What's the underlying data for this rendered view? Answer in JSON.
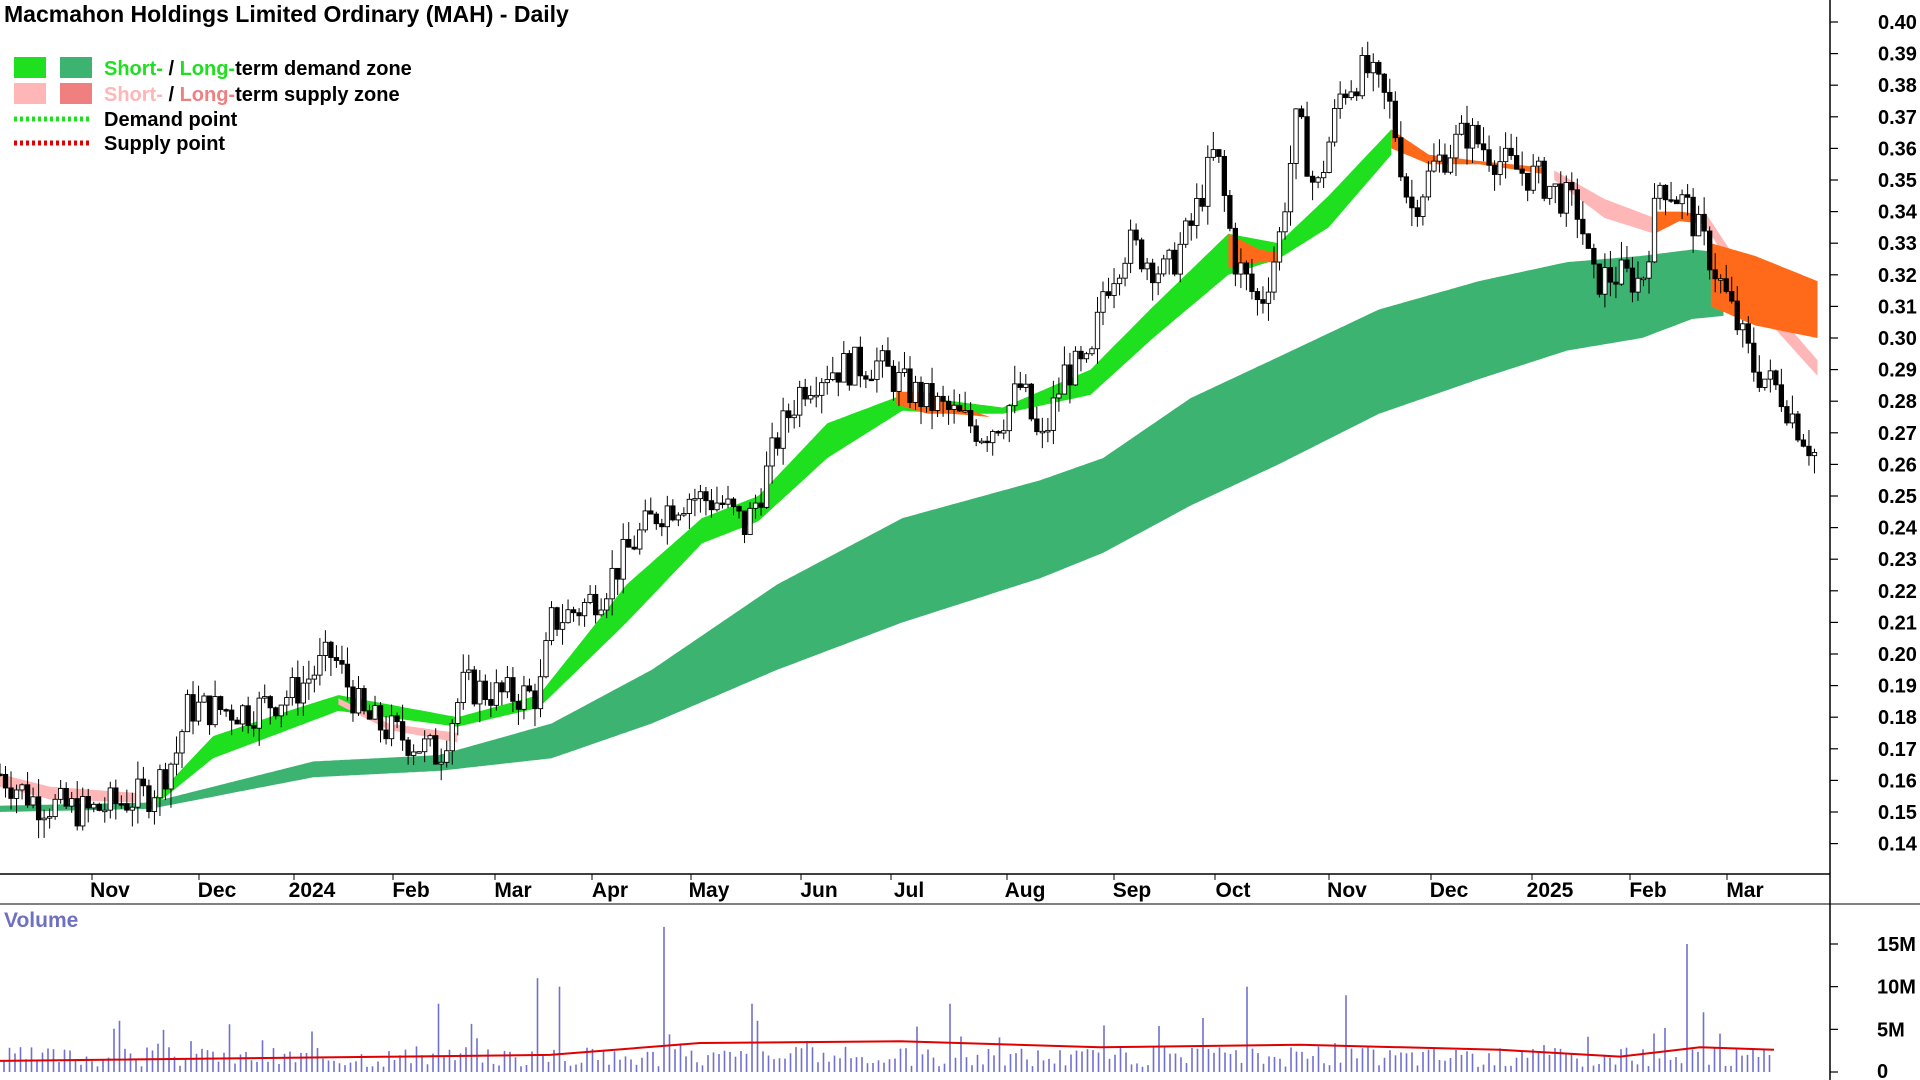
{
  "chart_data": {
    "type": "candlestick",
    "title": "Macmahon Holdings Limited Ordinary (MAH) - Daily",
    "legend": {
      "demand_short": "Short-",
      "demand_slash": " / ",
      "demand_long": "Long-",
      "demand_rest": "term demand zone",
      "supply_short": "Short-",
      "supply_slash": " / ",
      "supply_long": "Long-",
      "supply_rest": "term supply zone",
      "demand_point": "Demand point",
      "supply_point": "Supply point"
    },
    "colors": {
      "short_demand": "#1ee01e",
      "long_demand": "#3cb371",
      "short_supply": "#ffb6b6",
      "long_supply": "#f08080",
      "orange_cross": "#ff6a1a",
      "demand_point": "#1ee01e",
      "supply_point": "#e00000",
      "volume_bar": "#7070d0",
      "volume_avg": "#e00000",
      "label_green": "#1ee01e",
      "label_pink": "#ffb6b6",
      "label_salmon": "#f08080"
    },
    "price_axis": {
      "min": 0.13,
      "max": 0.405,
      "ticks": [
        "0.40",
        "0.39",
        "0.38",
        "0.37",
        "0.36",
        "0.35",
        "0.34",
        "0.33",
        "0.32",
        "0.31",
        "0.30",
        "0.29",
        "0.28",
        "0.27",
        "0.26",
        "0.25",
        "0.24",
        "0.23",
        "0.22",
        "0.21",
        "0.20",
        "0.19",
        "0.18",
        "0.17",
        "0.16",
        "0.15",
        "0.14"
      ]
    },
    "months": [
      "Nov",
      "Dec",
      "2024",
      "Feb",
      "Mar",
      "Apr",
      "May",
      "Jun",
      "Jul",
      "Aug",
      "Sep",
      "Oct",
      "Nov",
      "Dec",
      "2025",
      "Feb",
      "Mar"
    ],
    "volume": {
      "title": "Volume",
      "ticks": [
        "15M",
        "10M",
        "5M",
        "0"
      ],
      "max": 16000000
    },
    "price_path": [
      [
        0,
        0.162
      ],
      [
        30,
        0.153
      ],
      [
        70,
        0.15
      ],
      [
        120,
        0.156
      ],
      [
        140,
        0.168
      ],
      [
        150,
        0.183
      ],
      [
        200,
        0.182
      ],
      [
        235,
        0.188
      ],
      [
        265,
        0.2
      ],
      [
        290,
        0.18
      ],
      [
        330,
        0.172
      ],
      [
        350,
        0.168
      ],
      [
        370,
        0.19
      ],
      [
        400,
        0.187
      ],
      [
        430,
        0.187
      ],
      [
        440,
        0.21
      ],
      [
        465,
        0.215
      ],
      [
        480,
        0.22
      ],
      [
        505,
        0.235
      ],
      [
        525,
        0.245
      ],
      [
        550,
        0.25
      ],
      [
        575,
        0.248
      ],
      [
        595,
        0.24
      ],
      [
        610,
        0.255
      ],
      [
        620,
        0.268
      ],
      [
        640,
        0.285
      ],
      [
        660,
        0.29
      ],
      [
        700,
        0.292
      ],
      [
        720,
        0.285
      ],
      [
        740,
        0.28
      ],
      [
        760,
        0.276
      ],
      [
        785,
        0.27
      ],
      [
        800,
        0.275
      ],
      [
        815,
        0.285
      ],
      [
        830,
        0.265
      ],
      [
        850,
        0.29
      ],
      [
        870,
        0.29
      ],
      [
        880,
        0.315
      ],
      [
        900,
        0.33
      ],
      [
        930,
        0.32
      ],
      [
        950,
        0.335
      ],
      [
        970,
        0.36
      ],
      [
        985,
        0.325
      ],
      [
        1005,
        0.31
      ],
      [
        1020,
        0.33
      ],
      [
        1035,
        0.37
      ],
      [
        1050,
        0.345
      ],
      [
        1070,
        0.378
      ],
      [
        1090,
        0.385
      ],
      [
        1110,
        0.372
      ],
      [
        1125,
        0.34
      ],
      [
        1145,
        0.355
      ],
      [
        1170,
        0.365
      ],
      [
        1200,
        0.355
      ],
      [
        1230,
        0.35
      ],
      [
        1260,
        0.34
      ],
      [
        1270,
        0.318
      ],
      [
        1290,
        0.32
      ],
      [
        1310,
        0.318
      ],
      [
        1325,
        0.35
      ],
      [
        1345,
        0.342
      ],
      [
        1365,
        0.325
      ],
      [
        1385,
        0.305
      ],
      [
        1400,
        0.29
      ],
      [
        1420,
        0.283
      ],
      [
        1435,
        0.272
      ],
      [
        1450,
        0.262
      ]
    ],
    "long_band": [
      [
        0,
        0.152,
        0.15
      ],
      [
        120,
        0.153,
        0.151
      ],
      [
        250,
        0.166,
        0.161
      ],
      [
        350,
        0.168,
        0.163
      ],
      [
        440,
        0.178,
        0.167
      ],
      [
        520,
        0.195,
        0.178
      ],
      [
        620,
        0.222,
        0.195
      ],
      [
        720,
        0.243,
        0.21
      ],
      [
        830,
        0.255,
        0.224
      ],
      [
        880,
        0.262,
        0.232
      ],
      [
        950,
        0.281,
        0.247
      ],
      [
        1020,
        0.294,
        0.26
      ],
      [
        1100,
        0.309,
        0.276
      ],
      [
        1180,
        0.318,
        0.287
      ],
      [
        1250,
        0.324,
        0.296
      ],
      [
        1310,
        0.326,
        0.3
      ],
      [
        1350,
        0.328,
        0.306
      ],
      [
        1375,
        0.327,
        0.307
      ]
    ],
    "short_band": [
      [
        120,
        0.153,
        0.151
      ],
      [
        170,
        0.174,
        0.167
      ],
      [
        230,
        0.182,
        0.176
      ],
      [
        270,
        0.187,
        0.182
      ],
      [
        365,
        0.18,
        0.177
      ],
      [
        430,
        0.187,
        0.183
      ],
      [
        500,
        0.222,
        0.21
      ],
      [
        560,
        0.243,
        0.235
      ],
      [
        605,
        0.25,
        0.242
      ],
      [
        660,
        0.273,
        0.262
      ],
      [
        720,
        0.282,
        0.277
      ],
      [
        760,
        0.28,
        0.276
      ],
      [
        800,
        0.278,
        0.276
      ],
      [
        870,
        0.29,
        0.282
      ],
      [
        920,
        0.31,
        0.3
      ],
      [
        980,
        0.333,
        0.32
      ],
      [
        1020,
        0.33,
        0.325
      ],
      [
        1060,
        0.345,
        0.335
      ],
      [
        1110,
        0.366,
        0.358
      ]
    ],
    "orange_segments": [
      [
        [
          980,
          0.333,
          0.322
        ],
        [
          1005,
          0.328,
          0.324
        ],
        [
          1020,
          0.327,
          0.324
        ]
      ],
      [
        [
          1110,
          0.366,
          0.36
        ],
        [
          1140,
          0.358,
          0.355
        ],
        [
          1180,
          0.356,
          0.355
        ],
        [
          1230,
          0.354,
          0.352
        ]
      ],
      [
        [
          715,
          0.283,
          0.279
        ],
        [
          740,
          0.283,
          0.276
        ],
        [
          760,
          0.279,
          0.276
        ],
        [
          790,
          0.275,
          0.275
        ]
      ],
      [
        [
          1320,
          0.34,
          0.333
        ],
        [
          1340,
          0.34,
          0.337
        ],
        [
          1360,
          0.339,
          0.336
        ]
      ],
      [
        [
          1365,
          0.33,
          0.31
        ],
        [
          1400,
          0.326,
          0.304
        ],
        [
          1450,
          0.318,
          0.3
        ]
      ]
    ],
    "pink_segments": [
      [
        [
          0,
          0.162,
          0.158
        ],
        [
          40,
          0.158,
          0.154
        ],
        [
          110,
          0.156,
          0.153
        ]
      ],
      [
        [
          270,
          0.186,
          0.184
        ],
        [
          310,
          0.178,
          0.176
        ],
        [
          365,
          0.175,
          0.172
        ]
      ],
      [
        [
          1240,
          0.353,
          0.35
        ],
        [
          1280,
          0.344,
          0.338
        ],
        [
          1320,
          0.338,
          0.333
        ]
      ],
      [
        [
          1360,
          0.34,
          0.336
        ],
        [
          1400,
          0.316,
          0.31
        ],
        [
          1450,
          0.293,
          0.288
        ]
      ]
    ]
  }
}
